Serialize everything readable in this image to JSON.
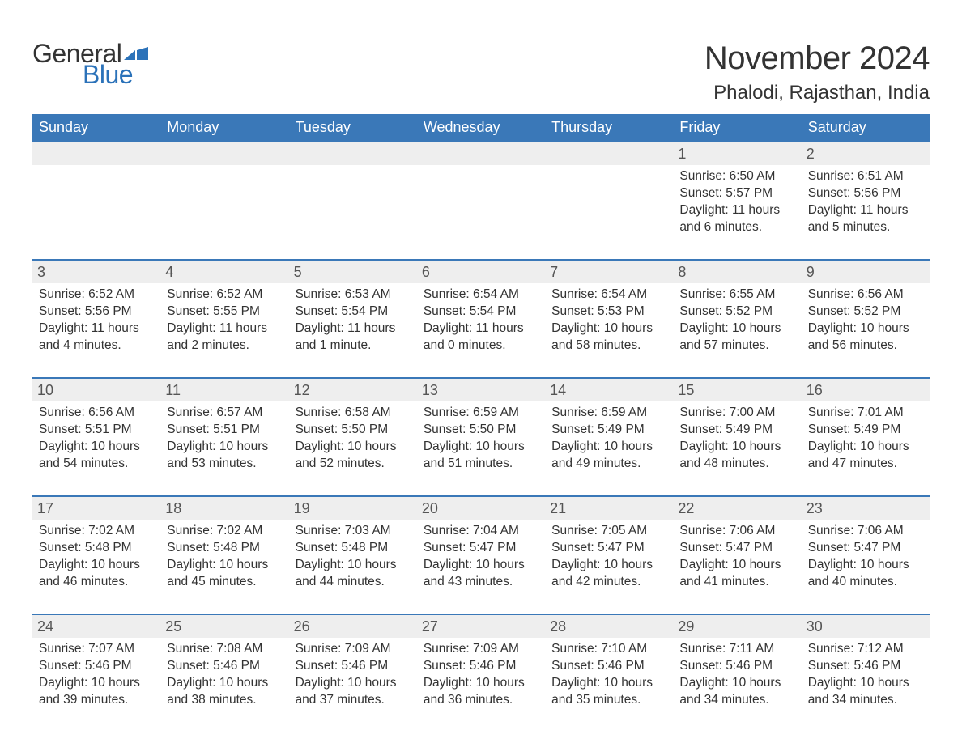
{
  "logo": {
    "general": "General",
    "blue": "Blue"
  },
  "title": "November 2024",
  "location": "Phalodi, Rajasthan, India",
  "colors": {
    "header_bg": "#3a78b8",
    "header_text": "#ffffff",
    "daynum_bg": "#eeeeee",
    "border": "#3a78b8",
    "logo_blue": "#2b72b9",
    "body_text": "#333333",
    "page_bg": "#ffffff"
  },
  "typography": {
    "title_fontsize": 40,
    "location_fontsize": 24,
    "weekday_fontsize": 18,
    "daynum_fontsize": 18,
    "detail_fontsize": 15.5,
    "logo_fontsize": 32
  },
  "weekdays": [
    "Sunday",
    "Monday",
    "Tuesday",
    "Wednesday",
    "Thursday",
    "Friday",
    "Saturday"
  ],
  "weeks": [
    [
      {
        "day": "",
        "sunrise": "",
        "sunset": "",
        "daylight": ""
      },
      {
        "day": "",
        "sunrise": "",
        "sunset": "",
        "daylight": ""
      },
      {
        "day": "",
        "sunrise": "",
        "sunset": "",
        "daylight": ""
      },
      {
        "day": "",
        "sunrise": "",
        "sunset": "",
        "daylight": ""
      },
      {
        "day": "",
        "sunrise": "",
        "sunset": "",
        "daylight": ""
      },
      {
        "day": "1",
        "sunrise": "Sunrise: 6:50 AM",
        "sunset": "Sunset: 5:57 PM",
        "daylight": "Daylight: 11 hours and 6 minutes."
      },
      {
        "day": "2",
        "sunrise": "Sunrise: 6:51 AM",
        "sunset": "Sunset: 5:56 PM",
        "daylight": "Daylight: 11 hours and 5 minutes."
      }
    ],
    [
      {
        "day": "3",
        "sunrise": "Sunrise: 6:52 AM",
        "sunset": "Sunset: 5:56 PM",
        "daylight": "Daylight: 11 hours and 4 minutes."
      },
      {
        "day": "4",
        "sunrise": "Sunrise: 6:52 AM",
        "sunset": "Sunset: 5:55 PM",
        "daylight": "Daylight: 11 hours and 2 minutes."
      },
      {
        "day": "5",
        "sunrise": "Sunrise: 6:53 AM",
        "sunset": "Sunset: 5:54 PM",
        "daylight": "Daylight: 11 hours and 1 minute."
      },
      {
        "day": "6",
        "sunrise": "Sunrise: 6:54 AM",
        "sunset": "Sunset: 5:54 PM",
        "daylight": "Daylight: 11 hours and 0 minutes."
      },
      {
        "day": "7",
        "sunrise": "Sunrise: 6:54 AM",
        "sunset": "Sunset: 5:53 PM",
        "daylight": "Daylight: 10 hours and 58 minutes."
      },
      {
        "day": "8",
        "sunrise": "Sunrise: 6:55 AM",
        "sunset": "Sunset: 5:52 PM",
        "daylight": "Daylight: 10 hours and 57 minutes."
      },
      {
        "day": "9",
        "sunrise": "Sunrise: 6:56 AM",
        "sunset": "Sunset: 5:52 PM",
        "daylight": "Daylight: 10 hours and 56 minutes."
      }
    ],
    [
      {
        "day": "10",
        "sunrise": "Sunrise: 6:56 AM",
        "sunset": "Sunset: 5:51 PM",
        "daylight": "Daylight: 10 hours and 54 minutes."
      },
      {
        "day": "11",
        "sunrise": "Sunrise: 6:57 AM",
        "sunset": "Sunset: 5:51 PM",
        "daylight": "Daylight: 10 hours and 53 minutes."
      },
      {
        "day": "12",
        "sunrise": "Sunrise: 6:58 AM",
        "sunset": "Sunset: 5:50 PM",
        "daylight": "Daylight: 10 hours and 52 minutes."
      },
      {
        "day": "13",
        "sunrise": "Sunrise: 6:59 AM",
        "sunset": "Sunset: 5:50 PM",
        "daylight": "Daylight: 10 hours and 51 minutes."
      },
      {
        "day": "14",
        "sunrise": "Sunrise: 6:59 AM",
        "sunset": "Sunset: 5:49 PM",
        "daylight": "Daylight: 10 hours and 49 minutes."
      },
      {
        "day": "15",
        "sunrise": "Sunrise: 7:00 AM",
        "sunset": "Sunset: 5:49 PM",
        "daylight": "Daylight: 10 hours and 48 minutes."
      },
      {
        "day": "16",
        "sunrise": "Sunrise: 7:01 AM",
        "sunset": "Sunset: 5:49 PM",
        "daylight": "Daylight: 10 hours and 47 minutes."
      }
    ],
    [
      {
        "day": "17",
        "sunrise": "Sunrise: 7:02 AM",
        "sunset": "Sunset: 5:48 PM",
        "daylight": "Daylight: 10 hours and 46 minutes."
      },
      {
        "day": "18",
        "sunrise": "Sunrise: 7:02 AM",
        "sunset": "Sunset: 5:48 PM",
        "daylight": "Daylight: 10 hours and 45 minutes."
      },
      {
        "day": "19",
        "sunrise": "Sunrise: 7:03 AM",
        "sunset": "Sunset: 5:48 PM",
        "daylight": "Daylight: 10 hours and 44 minutes."
      },
      {
        "day": "20",
        "sunrise": "Sunrise: 7:04 AM",
        "sunset": "Sunset: 5:47 PM",
        "daylight": "Daylight: 10 hours and 43 minutes."
      },
      {
        "day": "21",
        "sunrise": "Sunrise: 7:05 AM",
        "sunset": "Sunset: 5:47 PM",
        "daylight": "Daylight: 10 hours and 42 minutes."
      },
      {
        "day": "22",
        "sunrise": "Sunrise: 7:06 AM",
        "sunset": "Sunset: 5:47 PM",
        "daylight": "Daylight: 10 hours and 41 minutes."
      },
      {
        "day": "23",
        "sunrise": "Sunrise: 7:06 AM",
        "sunset": "Sunset: 5:47 PM",
        "daylight": "Daylight: 10 hours and 40 minutes."
      }
    ],
    [
      {
        "day": "24",
        "sunrise": "Sunrise: 7:07 AM",
        "sunset": "Sunset: 5:46 PM",
        "daylight": "Daylight: 10 hours and 39 minutes."
      },
      {
        "day": "25",
        "sunrise": "Sunrise: 7:08 AM",
        "sunset": "Sunset: 5:46 PM",
        "daylight": "Daylight: 10 hours and 38 minutes."
      },
      {
        "day": "26",
        "sunrise": "Sunrise: 7:09 AM",
        "sunset": "Sunset: 5:46 PM",
        "daylight": "Daylight: 10 hours and 37 minutes."
      },
      {
        "day": "27",
        "sunrise": "Sunrise: 7:09 AM",
        "sunset": "Sunset: 5:46 PM",
        "daylight": "Daylight: 10 hours and 36 minutes."
      },
      {
        "day": "28",
        "sunrise": "Sunrise: 7:10 AM",
        "sunset": "Sunset: 5:46 PM",
        "daylight": "Daylight: 10 hours and 35 minutes."
      },
      {
        "day": "29",
        "sunrise": "Sunrise: 7:11 AM",
        "sunset": "Sunset: 5:46 PM",
        "daylight": "Daylight: 10 hours and 34 minutes."
      },
      {
        "day": "30",
        "sunrise": "Sunrise: 7:12 AM",
        "sunset": "Sunset: 5:46 PM",
        "daylight": "Daylight: 10 hours and 34 minutes."
      }
    ]
  ]
}
